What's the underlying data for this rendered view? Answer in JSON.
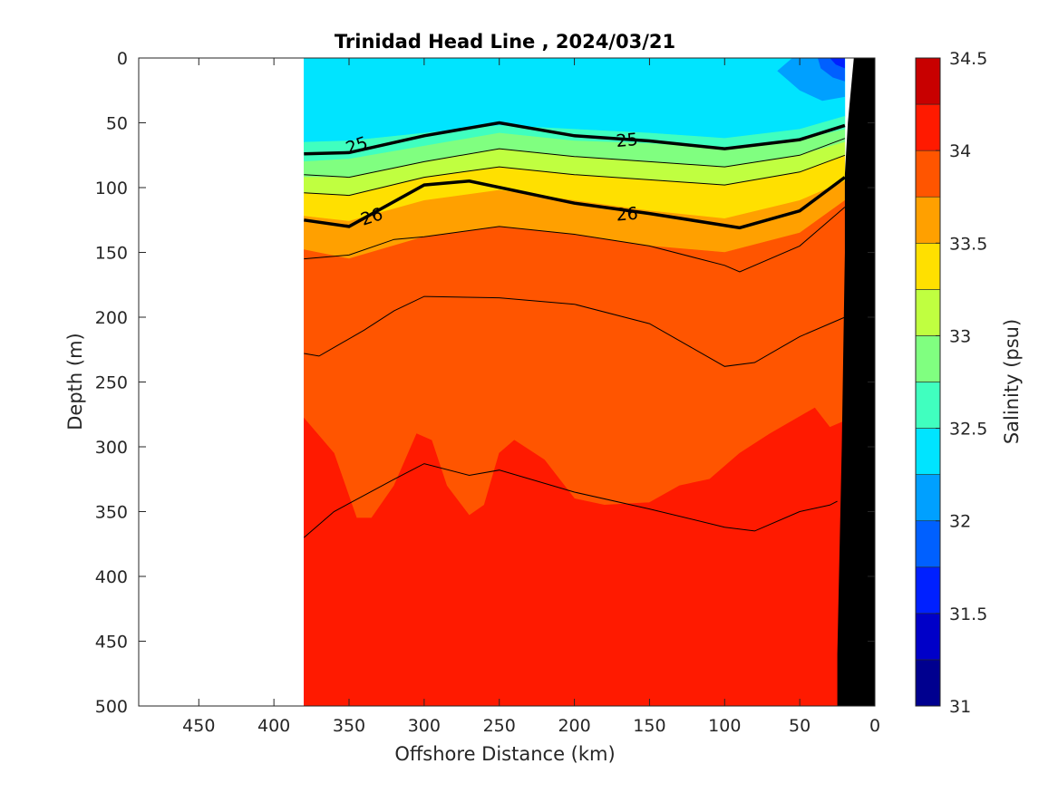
{
  "chart_data": {
    "type": "heatmap",
    "subtype": "filled-contour section",
    "title": "Trinidad Head Line , 2024/03/21",
    "xlabel": "Offshore Distance (km)",
    "ylabel": "Depth (m)",
    "colorbar_label": "Salinity (psu)",
    "xlim": [
      490,
      0
    ],
    "x_direction": "reversed",
    "ylim": [
      0,
      500
    ],
    "y_direction": "reversed",
    "x_ticks": [
      "450",
      "400",
      "350",
      "300",
      "250",
      "200",
      "150",
      "100",
      "50",
      "0"
    ],
    "y_ticks": [
      "0",
      "50",
      "100",
      "150",
      "200",
      "250",
      "300",
      "350",
      "400",
      "450",
      "500"
    ],
    "colorbar_ticks": [
      "31",
      "31.5",
      "32",
      "32.5",
      "33",
      "33.5",
      "34",
      "34.5"
    ],
    "colorbar_range": [
      31,
      34.5
    ],
    "colorbar_levels": [
      {
        "from": 31.0,
        "to": 31.25,
        "color": "#00008f"
      },
      {
        "from": 31.25,
        "to": 31.5,
        "color": "#0000c8"
      },
      {
        "from": 31.5,
        "to": 31.75,
        "color": "#0020ff"
      },
      {
        "from": 31.75,
        "to": 32.0,
        "color": "#0060ff"
      },
      {
        "from": 32.0,
        "to": 32.25,
        "color": "#00a0ff"
      },
      {
        "from": 32.25,
        "to": 32.5,
        "color": "#00e4ff"
      },
      {
        "from": 32.5,
        "to": 32.75,
        "color": "#40ffbf"
      },
      {
        "from": 32.75,
        "to": 33.0,
        "color": "#80ff80"
      },
      {
        "from": 33.0,
        "to": 33.25,
        "color": "#c0ff40"
      },
      {
        "from": 33.25,
        "to": 33.5,
        "color": "#ffe000"
      },
      {
        "from": 33.5,
        "to": 33.75,
        "color": "#ffa000"
      },
      {
        "from": 33.75,
        "to": 34.0,
        "color": "#ff5500"
      },
      {
        "from": 34.0,
        "to": 34.25,
        "color": "#ff1a00"
      },
      {
        "from": 34.25,
        "to": 34.5,
        "color": "#c80000"
      }
    ],
    "data_extent_km": [
      380,
      20
    ],
    "salinity_layers": [
      {
        "range": "32.25-32.5",
        "color": "#00e4ff",
        "top": [
          [
            380,
            0
          ],
          [
            20,
            0
          ]
        ],
        "bottom": [
          [
            380,
            65
          ],
          [
            350,
            64
          ],
          [
            300,
            58
          ],
          [
            250,
            52
          ],
          [
            200,
            55
          ],
          [
            150,
            58
          ],
          [
            100,
            62
          ],
          [
            50,
            55
          ],
          [
            20,
            45
          ]
        ]
      },
      {
        "range": "32.5-32.75",
        "color": "#40ffbf",
        "top": [
          [
            380,
            65
          ],
          [
            350,
            64
          ],
          [
            300,
            58
          ],
          [
            250,
            52
          ],
          [
            200,
            55
          ],
          [
            150,
            58
          ],
          [
            100,
            62
          ],
          [
            50,
            55
          ],
          [
            20,
            45
          ]
        ],
        "bottom": [
          [
            380,
            80
          ],
          [
            350,
            78
          ],
          [
            300,
            68
          ],
          [
            250,
            58
          ],
          [
            200,
            64
          ],
          [
            150,
            66
          ],
          [
            100,
            70
          ],
          [
            50,
            63
          ],
          [
            20,
            55
          ]
        ]
      },
      {
        "range": "32.75-33.0",
        "color": "#80ff80",
        "top": [
          [
            380,
            80
          ],
          [
            350,
            78
          ],
          [
            300,
            68
          ],
          [
            250,
            58
          ],
          [
            200,
            64
          ],
          [
            150,
            66
          ],
          [
            100,
            70
          ],
          [
            50,
            63
          ],
          [
            20,
            55
          ]
        ],
        "bottom": [
          [
            380,
            92
          ],
          [
            350,
            92
          ],
          [
            300,
            80
          ],
          [
            250,
            70
          ],
          [
            200,
            76
          ],
          [
            150,
            80
          ],
          [
            100,
            84
          ],
          [
            50,
            75
          ],
          [
            20,
            65
          ]
        ]
      },
      {
        "range": "33.0-33.25",
        "color": "#c0ff40",
        "top": [
          [
            380,
            92
          ],
          [
            350,
            92
          ],
          [
            300,
            80
          ],
          [
            250,
            70
          ],
          [
            200,
            76
          ],
          [
            150,
            80
          ],
          [
            100,
            84
          ],
          [
            50,
            75
          ],
          [
            20,
            65
          ]
        ],
        "bottom": [
          [
            380,
            104
          ],
          [
            350,
            106
          ],
          [
            300,
            92
          ],
          [
            250,
            84
          ],
          [
            200,
            90
          ],
          [
            150,
            94
          ],
          [
            100,
            98
          ],
          [
            50,
            88
          ],
          [
            20,
            75
          ]
        ]
      },
      {
        "range": "33.25-33.5",
        "color": "#ffe000",
        "top": [
          [
            380,
            104
          ],
          [
            350,
            106
          ],
          [
            300,
            92
          ],
          [
            250,
            84
          ],
          [
            200,
            90
          ],
          [
            150,
            94
          ],
          [
            100,
            98
          ],
          [
            50,
            88
          ],
          [
            20,
            75
          ]
        ],
        "bottom": [
          [
            380,
            122
          ],
          [
            350,
            126
          ],
          [
            300,
            110
          ],
          [
            250,
            102
          ],
          [
            200,
            110
          ],
          [
            150,
            118
          ],
          [
            100,
            124
          ],
          [
            50,
            110
          ],
          [
            20,
            95
          ]
        ]
      },
      {
        "range": "33.5-33.75",
        "color": "#ffa000",
        "top": [
          [
            380,
            122
          ],
          [
            350,
            126
          ],
          [
            300,
            110
          ],
          [
            250,
            102
          ],
          [
            200,
            110
          ],
          [
            150,
            118
          ],
          [
            100,
            124
          ],
          [
            50,
            110
          ],
          [
            20,
            95
          ]
        ],
        "bottom": [
          [
            380,
            148
          ],
          [
            350,
            155
          ],
          [
            300,
            138
          ],
          [
            250,
            130
          ],
          [
            200,
            136
          ],
          [
            150,
            145
          ],
          [
            100,
            150
          ],
          [
            50,
            135
          ],
          [
            20,
            110
          ]
        ]
      },
      {
        "range": "33.75-34.0",
        "color": "#ff5500",
        "top": [
          [
            380,
            148
          ],
          [
            350,
            155
          ],
          [
            300,
            138
          ],
          [
            250,
            130
          ],
          [
            200,
            136
          ],
          [
            150,
            145
          ],
          [
            100,
            150
          ],
          [
            50,
            135
          ],
          [
            20,
            110
          ]
        ],
        "bottom": [
          [
            380,
            278
          ],
          [
            360,
            305
          ],
          [
            345,
            355
          ],
          [
            335,
            355
          ],
          [
            320,
            330
          ],
          [
            305,
            290
          ],
          [
            295,
            295
          ],
          [
            285,
            330
          ],
          [
            270,
            353
          ],
          [
            260,
            345
          ],
          [
            250,
            305
          ],
          [
            240,
            295
          ],
          [
            220,
            310
          ],
          [
            200,
            340
          ],
          [
            180,
            345
          ],
          [
            150,
            343
          ],
          [
            130,
            330
          ],
          [
            110,
            325
          ],
          [
            90,
            305
          ],
          [
            70,
            290
          ],
          [
            40,
            270
          ],
          [
            30,
            285
          ],
          [
            20,
            280
          ]
        ]
      },
      {
        "range": "34.0-34.25",
        "color": "#ff1a00",
        "top": [
          [
            380,
            278
          ],
          [
            360,
            305
          ],
          [
            345,
            355
          ],
          [
            335,
            355
          ],
          [
            320,
            330
          ],
          [
            305,
            290
          ],
          [
            295,
            295
          ],
          [
            285,
            330
          ],
          [
            270,
            353
          ],
          [
            260,
            345
          ],
          [
            250,
            305
          ],
          [
            240,
            295
          ],
          [
            220,
            310
          ],
          [
            200,
            340
          ],
          [
            180,
            345
          ],
          [
            150,
            343
          ],
          [
            130,
            330
          ],
          [
            110,
            325
          ],
          [
            90,
            305
          ],
          [
            70,
            290
          ],
          [
            40,
            270
          ],
          [
            30,
            285
          ],
          [
            20,
            280
          ]
        ],
        "bottom": [
          [
            380,
            500
          ],
          [
            20,
            500
          ]
        ]
      }
    ],
    "nearshore_fresh_patches": [
      {
        "range": "32.0-32.25",
        "color": "#00a0ff",
        "points": [
          [
            55,
            0
          ],
          [
            20,
            0
          ],
          [
            20,
            30
          ],
          [
            35,
            33
          ],
          [
            50,
            25
          ],
          [
            65,
            10
          ]
        ]
      },
      {
        "range": "31.75-32.0",
        "color": "#0060ff",
        "points": [
          [
            38,
            0
          ],
          [
            20,
            0
          ],
          [
            20,
            18
          ],
          [
            28,
            15
          ],
          [
            36,
            8
          ]
        ]
      },
      {
        "range": "31.5-31.75",
        "color": "#0020ff",
        "points": [
          [
            30,
            0
          ],
          [
            20,
            0
          ],
          [
            20,
            8
          ],
          [
            26,
            5
          ]
        ]
      }
    ],
    "density_contours_thin": [
      [
        [
          380,
          90
        ],
        [
          350,
          92
        ],
        [
          300,
          80
        ],
        [
          250,
          70
        ],
        [
          200,
          76
        ],
        [
          150,
          80
        ],
        [
          100,
          84
        ],
        [
          50,
          75
        ],
        [
          20,
          62
        ]
      ],
      [
        [
          380,
          104
        ],
        [
          350,
          106
        ],
        [
          300,
          92
        ],
        [
          250,
          84
        ],
        [
          200,
          90
        ],
        [
          150,
          94
        ],
        [
          100,
          98
        ],
        [
          50,
          88
        ],
        [
          20,
          75
        ]
      ],
      [
        [
          380,
          155
        ],
        [
          350,
          152
        ],
        [
          320,
          140
        ],
        [
          300,
          138
        ],
        [
          250,
          130
        ],
        [
          200,
          136
        ],
        [
          150,
          145
        ],
        [
          100,
          160
        ],
        [
          90,
          165
        ],
        [
          50,
          145
        ],
        [
          20,
          115
        ]
      ],
      [
        [
          380,
          228
        ],
        [
          370,
          230
        ],
        [
          340,
          210
        ],
        [
          320,
          195
        ],
        [
          300,
          184
        ],
        [
          250,
          185
        ],
        [
          200,
          190
        ],
        [
          150,
          205
        ],
        [
          100,
          238
        ],
        [
          80,
          235
        ],
        [
          50,
          215
        ],
        [
          20,
          200
        ]
      ],
      [
        [
          380,
          370
        ],
        [
          360,
          350
        ],
        [
          320,
          325
        ],
        [
          300,
          313
        ],
        [
          270,
          322
        ],
        [
          250,
          318
        ],
        [
          200,
          335
        ],
        [
          150,
          348
        ],
        [
          100,
          362
        ],
        [
          80,
          365
        ],
        [
          50,
          350
        ],
        [
          30,
          345
        ],
        [
          25,
          342
        ]
      ]
    ],
    "density_contours_bold": [
      {
        "label": "25",
        "label_at": [
          [
            345,
            67
          ],
          [
            165,
            63
          ]
        ],
        "points": [
          [
            380,
            74
          ],
          [
            350,
            73
          ],
          [
            300,
            60
          ],
          [
            250,
            50
          ],
          [
            200,
            60
          ],
          [
            150,
            64
          ],
          [
            100,
            70
          ],
          [
            50,
            63
          ],
          [
            20,
            52
          ]
        ]
      },
      {
        "label": "26",
        "label_at": [
          [
            335,
            122
          ],
          [
            165,
            120
          ]
        ],
        "points": [
          [
            380,
            125
          ],
          [
            350,
            130
          ],
          [
            300,
            98
          ],
          [
            270,
            95
          ],
          [
            200,
            112
          ],
          [
            150,
            120
          ],
          [
            90,
            131
          ],
          [
            50,
            118
          ],
          [
            20,
            92
          ]
        ]
      }
    ],
    "bottom_topography": [
      [
        14,
        0
      ],
      [
        0,
        0
      ],
      [
        0,
        500
      ],
      [
        25,
        500
      ],
      [
        25,
        460
      ],
      [
        22,
        300
      ],
      [
        20,
        150
      ],
      [
        20,
        90
      ],
      [
        18,
        50
      ]
    ]
  }
}
